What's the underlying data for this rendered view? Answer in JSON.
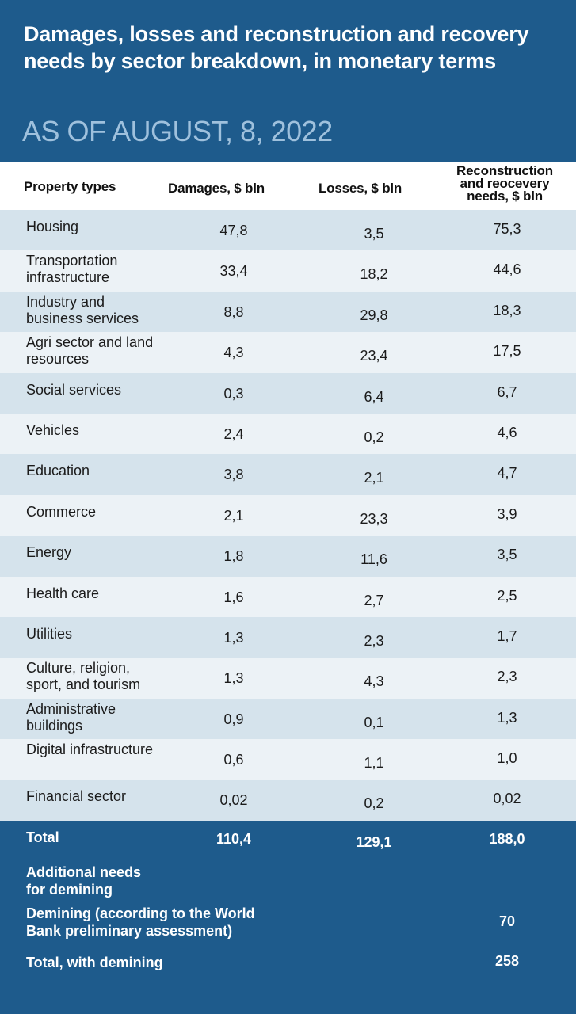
{
  "header": {
    "title": "Damages, losses and reconstruction and recovery needs by sector breakdown, in monetary terms",
    "subtitle": "AS OF AUGUST, 8, 2022"
  },
  "colors": {
    "header_bg": "#1e5b8c",
    "row_odd": "#d5e3ec",
    "row_even": "#ecf2f6",
    "subtitle": "#9fc1dd"
  },
  "chart_data": {
    "type": "table",
    "columns": [
      "Property types",
      "Damages, $ bln",
      "Losses, $ bln",
      "Reconstruction and reocevery needs, $ bln"
    ],
    "rows": [
      [
        "Housing",
        "47,8",
        "3,5",
        "75,3"
      ],
      [
        "Transportation infrastructure",
        "33,4",
        "18,2",
        "44,6"
      ],
      [
        "Industry and business services",
        "8,8",
        "29,8",
        "18,3"
      ],
      [
        "Agri sector and land resources",
        "4,3",
        "23,4",
        "17,5"
      ],
      [
        "Social services",
        "0,3",
        "6,4",
        "6,7"
      ],
      [
        "Vehicles",
        "2,4",
        "0,2",
        "4,6"
      ],
      [
        "Education",
        "3,8",
        "2,1",
        "4,7"
      ],
      [
        "Commerce",
        "2,1",
        "23,3",
        "3,9"
      ],
      [
        "Energy",
        "1,8",
        "11,6",
        "3,5"
      ],
      [
        "Health care",
        "1,6",
        "2,7",
        "2,5"
      ],
      [
        "Utilities",
        "1,3",
        "2,3",
        "1,7"
      ],
      [
        "Culture, religion, sport, and tourism",
        "1,3",
        "4,3",
        "2,3"
      ],
      [
        "Administrative buildings",
        "0,9",
        "0,1",
        "1,3"
      ],
      [
        "Digital infrastructure",
        "0,6",
        "1,1",
        "1,0"
      ],
      [
        "Financial sector",
        "0,02",
        "0,2",
        "0,02"
      ]
    ],
    "total": [
      "Total",
      "110,4",
      "129,1",
      "188,0"
    ],
    "additional_label": "Additional needs for demining",
    "demining": [
      "Demining (according to the World Bank preliminary assessment)",
      "70"
    ],
    "total_with_demining": [
      "Total, with demining",
      "258"
    ]
  }
}
